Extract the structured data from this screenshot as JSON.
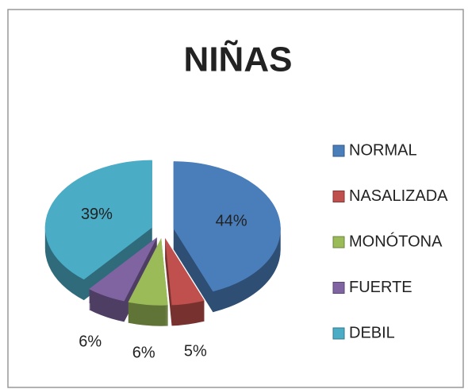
{
  "chart_data": {
    "type": "pie",
    "title": "NIÑAS",
    "categories": [
      "NORMAL",
      "NASALIZADA",
      "MONÓTONA",
      "FUERTE",
      "DEBIL"
    ],
    "values": [
      44,
      5,
      6,
      6,
      39
    ],
    "value_labels": [
      "44%",
      "5%",
      "6%",
      "6%",
      "39%"
    ],
    "colors": [
      "#4a7ebb",
      "#c0504d",
      "#9bbb59",
      "#8064a2",
      "#4bacc6"
    ],
    "legend": "right"
  }
}
